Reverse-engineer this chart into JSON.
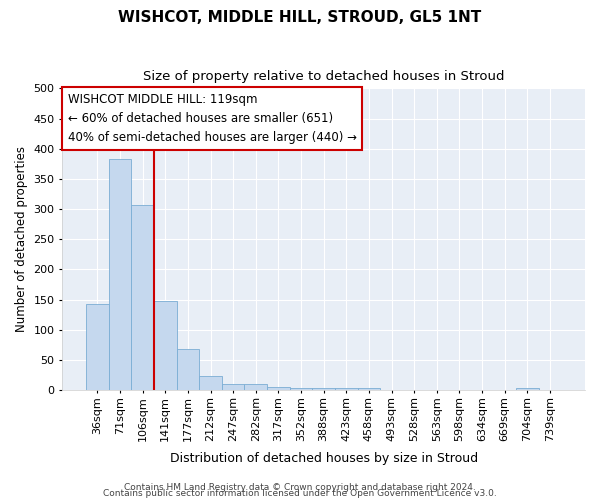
{
  "title": "WISHCOT, MIDDLE HILL, STROUD, GL5 1NT",
  "subtitle": "Size of property relative to detached houses in Stroud",
  "xlabel": "Distribution of detached houses by size in Stroud",
  "ylabel": "Number of detached properties",
  "bar_labels": [
    "36sqm",
    "71sqm",
    "106sqm",
    "141sqm",
    "177sqm",
    "212sqm",
    "247sqm",
    "282sqm",
    "317sqm",
    "352sqm",
    "388sqm",
    "423sqm",
    "458sqm",
    "493sqm",
    "528sqm",
    "563sqm",
    "598sqm",
    "634sqm",
    "669sqm",
    "704sqm",
    "739sqm"
  ],
  "bar_values": [
    143,
    383,
    307,
    148,
    69,
    23,
    10,
    10,
    5,
    3,
    3,
    3,
    3,
    0,
    0,
    0,
    0,
    0,
    0,
    3,
    0
  ],
  "bar_color": "#c5d8ee",
  "bar_edge_color": "#7aadd4",
  "vline_x_index": 2,
  "vline_color": "#cc0000",
  "ylim": [
    0,
    500
  ],
  "yticks": [
    0,
    50,
    100,
    150,
    200,
    250,
    300,
    350,
    400,
    450,
    500
  ],
  "annotation_title": "WISHCOT MIDDLE HILL: 119sqm",
  "annotation_line1": "← 60% of detached houses are smaller (651)",
  "annotation_line2": "40% of semi-detached houses are larger (440) →",
  "annotation_box_color": "#cc0000",
  "footer_line1": "Contains HM Land Registry data © Crown copyright and database right 2024.",
  "footer_line2": "Contains public sector information licensed under the Open Government Licence v3.0.",
  "fig_bg_color": "#ffffff",
  "plot_bg_color": "#e8eef6",
  "grid_color": "#ffffff",
  "title_fontsize": 11,
  "subtitle_fontsize": 9.5,
  "xlabel_fontsize": 9,
  "ylabel_fontsize": 8.5,
  "tick_fontsize": 8,
  "footer_fontsize": 6.5,
  "ann_fontsize": 8.5
}
